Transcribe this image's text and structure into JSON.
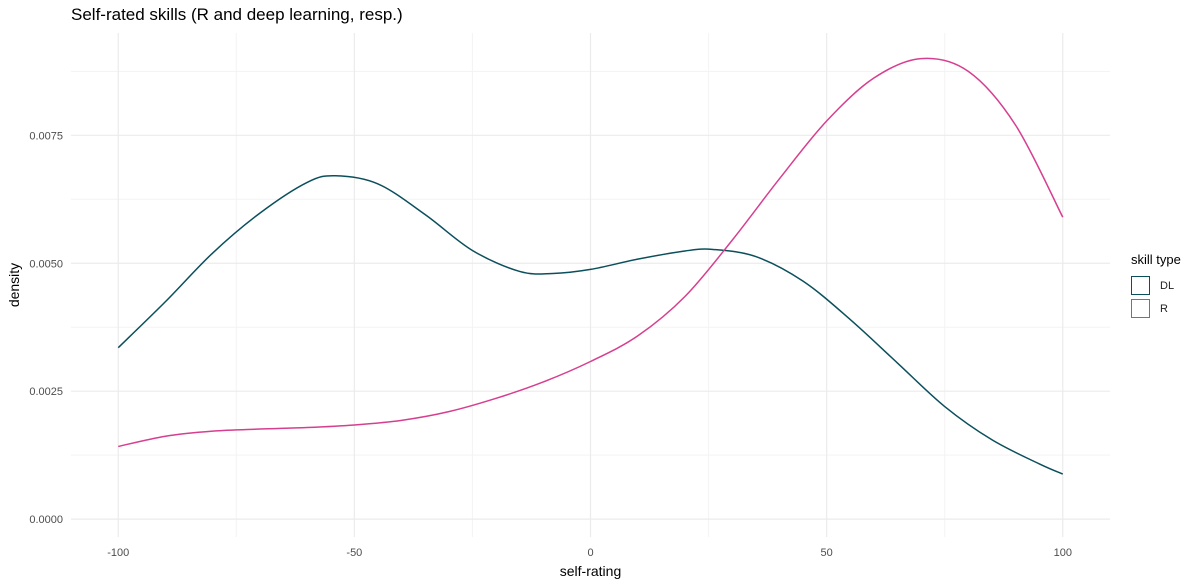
{
  "chart_data": {
    "type": "line",
    "title": "Self-rated skills (R and deep learning, resp.)",
    "xlabel": "self-rating",
    "ylabel": "density",
    "xlim": [
      -110,
      110
    ],
    "ylim": [
      -0.00035,
      0.0095
    ],
    "x_ticks": [
      -100,
      -50,
      0,
      50,
      100
    ],
    "x_tick_labels": [
      "-100",
      "-50",
      "0",
      "50",
      "100"
    ],
    "y_ticks": [
      0,
      0.0025,
      0.005,
      0.0075
    ],
    "y_tick_labels": [
      "0.0000",
      "0.0025",
      "0.0050",
      "0.0075"
    ],
    "grid": true,
    "legend": {
      "title": "skill type",
      "position": "right"
    },
    "series": [
      {
        "name": "DL",
        "color": "#0b4f5c",
        "x": [
          -100,
          -90,
          -80,
          -70,
          -60,
          -54,
          -45,
          -35,
          -25,
          -15,
          -8,
          0,
          10,
          20,
          26,
          35,
          45,
          55,
          65,
          75,
          85,
          95,
          100
        ],
        "y": [
          0.00335,
          0.00425,
          0.0052,
          0.00598,
          0.00658,
          0.00671,
          0.00655,
          0.00595,
          0.00525,
          0.00484,
          0.0048,
          0.00488,
          0.00508,
          0.00524,
          0.00527,
          0.00513,
          0.00465,
          0.0039,
          0.00305,
          0.0022,
          0.00155,
          0.00108,
          0.00088
        ]
      },
      {
        "name": "R",
        "color": "#d63f8f",
        "x": [
          -100,
          -90,
          -80,
          -70,
          -60,
          -50,
          -40,
          -30,
          -20,
          -10,
          0,
          10,
          20,
          30,
          40,
          50,
          60,
          70,
          80,
          90,
          100
        ],
        "y": [
          0.00142,
          0.00162,
          0.00172,
          0.00176,
          0.00179,
          0.00184,
          0.00193,
          0.0021,
          0.00236,
          0.00268,
          0.00308,
          0.00358,
          0.00435,
          0.00545,
          0.00665,
          0.00778,
          0.00862,
          0.009,
          0.00875,
          0.0077,
          0.0059
        ]
      }
    ]
  }
}
